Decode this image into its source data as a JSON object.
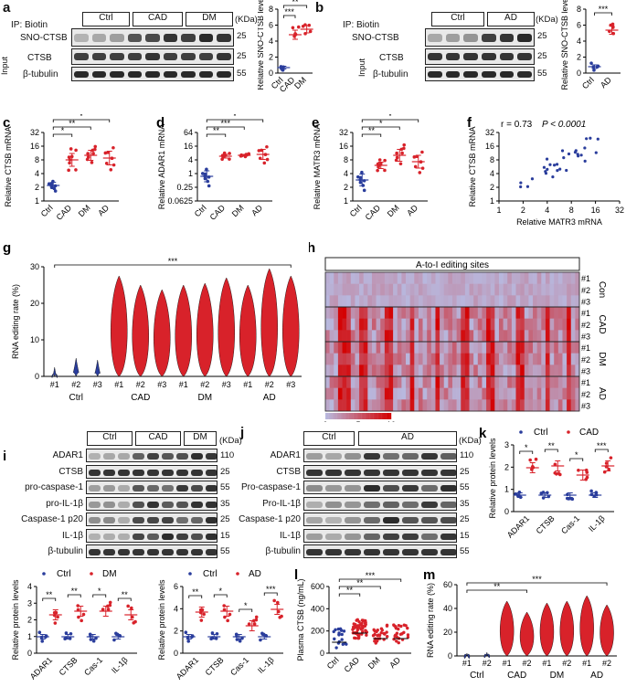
{
  "panels": {
    "a": {
      "label": "a",
      "ip": "IP: Biotin",
      "groups": [
        "Ctrl",
        "CAD",
        "DM"
      ],
      "kda": "(KDa)",
      "rows": [
        "SNO-CTSB",
        "CTSB",
        "β-tubulin"
      ],
      "input": "Input",
      "mw": [
        "25",
        "25",
        "55"
      ],
      "ylabel": "Relative SNO-CTSB levels",
      "yticks": [
        "0",
        "2",
        "4",
        "6",
        "8"
      ],
      "xticks": [
        "Ctrl",
        "CAD",
        "DM"
      ],
      "sig": [
        "***",
        "**"
      ]
    },
    "b": {
      "label": "b",
      "ip": "IP: Biotin",
      "groups": [
        "Ctrl",
        "AD"
      ],
      "kda": "(KDa)",
      "rows": [
        "SNO-CTSB",
        "CTSB",
        "β-tubulin"
      ],
      "input": "Input",
      "mw": [
        "25",
        "25",
        "55"
      ],
      "ylabel": "Relative SNO-CTSB levels",
      "yticks": [
        "0",
        "2",
        "4",
        "6",
        "8"
      ],
      "xticks": [
        "Ctrl",
        "AD"
      ],
      "sig": [
        "***"
      ]
    },
    "c": {
      "label": "c",
      "ylabel": "Relative CTSB mRNA",
      "yticks": [
        "1",
        "2",
        "4",
        "8",
        "16",
        "32"
      ],
      "xticks": [
        "Ctrl",
        "CAD",
        "DM",
        "AD"
      ],
      "sig": [
        "*",
        "**",
        "*"
      ]
    },
    "d": {
      "label": "d",
      "ylabel": "Relative ADAR1 mRNA",
      "yticks": [
        "0.0625",
        "0.25",
        "1",
        "4",
        "16",
        "64"
      ],
      "xticks": [
        "Ctrl",
        "CAD",
        "DM",
        "AD"
      ],
      "sig": [
        "**",
        "***",
        "*"
      ]
    },
    "e": {
      "label": "e",
      "ylabel": "Relative MATR3 mRNA",
      "yticks": [
        "1",
        "2",
        "4",
        "8",
        "16",
        "32"
      ],
      "xticks": [
        "Ctrl",
        "CAD",
        "DM",
        "AD"
      ],
      "sig": [
        "**",
        "*",
        "*"
      ]
    },
    "f": {
      "label": "f",
      "stat": "r = 0.73",
      "p": "P < 0.0001",
      "ylabel": "Relative CTSB mRNA",
      "xlabel": "Relative MATR3 mRNA",
      "yticks": [
        "1",
        "2",
        "4",
        "8",
        "16",
        "32"
      ],
      "xticks": [
        "1",
        "2",
        "4",
        "8",
        "16",
        "32"
      ]
    },
    "g": {
      "label": "g",
      "ylabel": "RNA editing rate (%)",
      "yticks": [
        "0",
        "10",
        "20",
        "30"
      ],
      "xticks": [
        "#1",
        "#2",
        "#3",
        "#1",
        "#2",
        "#3",
        "#1",
        "#2",
        "#3",
        "#1",
        "#2",
        "#3"
      ],
      "groups": [
        "Ctrl",
        "CAD",
        "DM",
        "AD"
      ],
      "sig": "***"
    },
    "h": {
      "label": "h",
      "title": "A-to-I editing sites",
      "rows": [
        "#1",
        "#2",
        "#3",
        "#1",
        "#2",
        "#3",
        "#1",
        "#2",
        "#3",
        "#1",
        "#2",
        "#3"
      ],
      "groups": [
        "Con",
        "CAD",
        "DM",
        "AD"
      ],
      "scale": [
        "0",
        "5",
        "10"
      ]
    },
    "i": {
      "label": "i",
      "groups": [
        "Ctrl",
        "CAD",
        "DM"
      ],
      "kda": "(KDa)",
      "rows": [
        "ADAR1",
        "CTSB",
        "pro-caspase-1",
        "pro-IL-1β",
        "Caspase-1 p20",
        "IL-1β",
        "β-tubulin"
      ],
      "mw": [
        "110",
        "25",
        "55",
        "35",
        "25",
        "15",
        "55"
      ]
    },
    "j": {
      "label": "j",
      "groups": [
        "Ctrl",
        "AD"
      ],
      "kda": "(KDa)",
      "rows": [
        "ADAR1",
        "CTSB",
        "Pro-caspase-1",
        "Pro-IL-1β",
        "Caspase-1 p20",
        "IL-1β",
        "β-tubulin"
      ],
      "mw": [
        "110",
        "25",
        "55",
        "35",
        "25",
        "15",
        "55"
      ]
    },
    "k": {
      "label": "k",
      "legend": [
        "Ctrl",
        "CAD"
      ],
      "ylabel": "Relative protein levels",
      "yticks": [
        "0",
        "1",
        "2",
        "3"
      ],
      "xticks": [
        "ADAR1",
        "CTSB",
        "Cas-1",
        "IL-1β"
      ],
      "sig": [
        "*",
        "**",
        "*",
        "***"
      ]
    },
    "i2": {
      "legend": [
        "Ctrl",
        "DM"
      ],
      "ylabel": "Relative protein levels",
      "yticks": [
        "0",
        "1",
        "2",
        "3",
        "4"
      ],
      "xticks": [
        "ADAR1",
        "CTSB",
        "Cas-1",
        "IL-1β"
      ],
      "sig": [
        "**",
        "**",
        "*",
        "**"
      ]
    },
    "j2": {
      "legend": [
        "Ctrl",
        "AD"
      ],
      "ylabel": "Relative protein levels",
      "yticks": [
        "0",
        "2",
        "4",
        "6"
      ],
      "xticks": [
        "ADAR1",
        "CTSB",
        "Cas-1",
        "IL-1β"
      ],
      "sig": [
        "**",
        "*",
        "*",
        "***"
      ]
    },
    "l": {
      "label": "l",
      "ylabel": "Plasma CTSB (ng/mL)",
      "yticks": [
        "0",
        "200",
        "400",
        "600"
      ],
      "xticks": [
        "Ctrl",
        "CAD",
        "DM",
        "AD"
      ],
      "sig": [
        "**",
        "**",
        "***"
      ]
    },
    "m": {
      "label": "m",
      "ylabel": "RNA editing rate (%)",
      "yticks": [
        "0",
        "20",
        "40",
        "60"
      ],
      "xticks": [
        "#1",
        "#2",
        "#1",
        "#2",
        "#1",
        "#2",
        "#1",
        "#2"
      ],
      "groups": [
        "Ctrl",
        "CAD",
        "DM",
        "AD"
      ],
      "sig": [
        "**",
        "***"
      ]
    }
  },
  "colors": {
    "ctrl": "#2a3d9c",
    "disease": "#d8222a",
    "band": "#1a1a1a",
    "heat_low": "#b8b8de",
    "heat_high": "#d40000"
  }
}
